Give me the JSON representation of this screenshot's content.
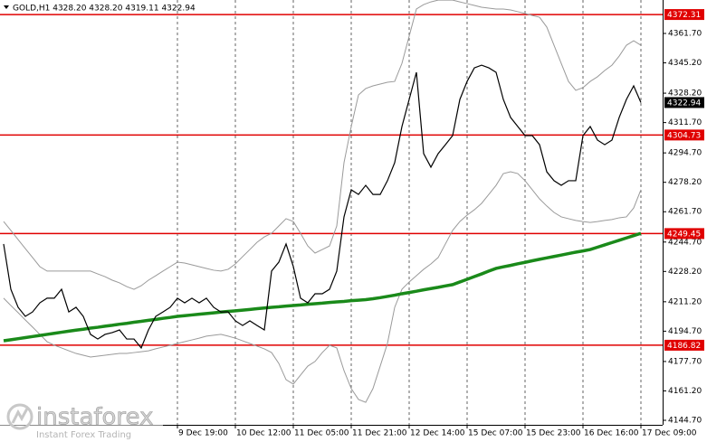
{
  "chart_data": {
    "type": "line",
    "title": "GOLD,H1  4328.20 4328.20 4319.11 4322.94",
    "categories": [
      null,
      null,
      null,
      null,
      null,
      null,
      null,
      null,
      null,
      null,
      null,
      null,
      null,
      null,
      null,
      null,
      null,
      null,
      null,
      null,
      null,
      null,
      null,
      null,
      "9 Dec 19:00",
      null,
      null,
      null,
      null,
      null,
      null,
      null,
      "10 Dec 12:00",
      null,
      null,
      null,
      null,
      null,
      null,
      null,
      "11 Dec 05:00",
      null,
      null,
      null,
      null,
      null,
      null,
      null,
      "11 Dec 21:00",
      null,
      null,
      null,
      null,
      null,
      null,
      null,
      "12 Dec 14:00",
      null,
      null,
      null,
      null,
      null,
      null,
      null,
      "15 Dec 07:00",
      null,
      null,
      null,
      null,
      null,
      null,
      null,
      "15 Dec 23:00",
      null,
      null,
      null,
      null,
      null,
      null,
      null,
      "16 Dec 16:00",
      null,
      null,
      null,
      null,
      null,
      null,
      null,
      "17 Dec 09:00"
    ],
    "series": [
      {
        "color": "#9a9a9a",
        "width": 1,
        "values": [
          4256.2,
          4251.2,
          4246.1,
          4241.0,
          4236.0,
          4230.9,
          4228.4,
          4228.4,
          4228.4,
          4228.4,
          4228.4,
          4228.4,
          4228.4,
          4226.8,
          4225.3,
          4223.3,
          4221.8,
          4219.7,
          4218.2,
          4220.2,
          4223.3,
          4225.8,
          4228.4,
          4230.9,
          4233.4,
          4232.9,
          4231.9,
          4230.9,
          4229.9,
          4228.9,
          4228.4,
          4229.4,
          4232.4,
          4236.5,
          4240.5,
          4244.6,
          4247.6,
          4249.6,
          4253.7,
          4257.8,
          4256.2,
          4249.6,
          4242.5,
          4238.5,
          4240.5,
          4242.5,
          4253.7,
          4289.2,
          4309.5,
          4327.2,
          4330.8,
          4332.3,
          4333.3,
          4334.3,
          4334.8,
          4344.9,
          4360.2,
          4375.4,
          4377.9,
          4379.4,
          4380.4,
          4380.4,
          4380.4,
          4379.4,
          4378.4,
          4377.4,
          4376.4,
          4375.9,
          4375.4,
          4375.4,
          4374.9,
          4373.9,
          4372.9,
          4371.8,
          4370.8,
          4365.3,
          4355.1,
          4344.9,
          4334.8,
          4329.8,
          4331.3,
          4334.8,
          4337.4,
          4340.9,
          4343.9,
          4349.0,
          4355.1,
          4357.6,
          4355.1
        ]
      },
      {
        "color": "#9a9a9a",
        "width": 1,
        "values": [
          4213.2,
          4209.1,
          4205.1,
          4201.0,
          4197.0,
          4192.9,
          4188.8,
          4186.8,
          4185.3,
          4183.7,
          4182.2,
          4181.2,
          4180.2,
          4180.7,
          4181.2,
          4181.7,
          4182.2,
          4182.2,
          4182.7,
          4183.2,
          4183.7,
          4184.8,
          4185.8,
          4186.8,
          4187.8,
          4188.8,
          4189.8,
          4190.8,
          4191.9,
          4192.4,
          4192.9,
          4191.9,
          4190.8,
          4189.3,
          4187.8,
          4186.3,
          4184.8,
          4182.7,
          4176.6,
          4167.5,
          4165.0,
          4170.1,
          4175.1,
          4177.7,
          4182.7,
          4186.8,
          4185.3,
          4172.6,
          4162.5,
          4156.4,
          4154.8,
          4162.5,
          4175.1,
          4187.8,
          4208.1,
          4218.2,
          4222.3,
          4225.8,
          4229.4,
          4232.4,
          4236.0,
          4243.6,
          4251.2,
          4256.2,
          4259.8,
          4262.8,
          4266.4,
          4271.4,
          4276.5,
          4283.1,
          4284.1,
          4283.1,
          4279.1,
          4274.0,
          4268.9,
          4264.9,
          4261.3,
          4258.8,
          4257.8,
          4256.8,
          4256.2,
          4255.7,
          4256.2,
          4256.8,
          4257.3,
          4258.3,
          4258.8,
          4263.8,
          4274.0
        ]
      },
      {
        "color": "#1a8a1a",
        "width": 3.5,
        "values": [
          4189.3,
          4189.9,
          4190.5,
          4191.1,
          4191.7,
          4192.3,
          4192.9,
          4193.5,
          4194.1,
          4194.7,
          4195.3,
          4195.8,
          4196.4,
          4196.9,
          4197.5,
          4198.0,
          4198.6,
          4199.1,
          4199.7,
          4200.2,
          4200.8,
          4201.3,
          4201.9,
          4202.4,
          4203.0,
          4203.4,
          4203.8,
          4204.2,
          4204.6,
          4205.0,
          4205.4,
          4205.8,
          4206.1,
          4206.5,
          4206.9,
          4207.3,
          4207.7,
          4208.1,
          4208.4,
          4208.8,
          4209.1,
          4209.4,
          4209.8,
          4210.1,
          4210.4,
          4210.8,
          4211.1,
          4211.4,
          4211.8,
          4212.1,
          4212.4,
          4212.9,
          4213.5,
          4214.2,
          4214.9,
          4215.7,
          4216.4,
          4217.1,
          4217.9,
          4218.6,
          4219.3,
          4220.1,
          4220.8,
          4222.3,
          4223.8,
          4225.3,
          4226.8,
          4228.4,
          4229.9,
          4230.8,
          4231.6,
          4232.5,
          4233.3,
          4234.2,
          4235.0,
          4235.8,
          4236.6,
          4237.4,
          4238.2,
          4239.0,
          4239.7,
          4240.5,
          4241.8,
          4243.1,
          4244.4,
          4245.7,
          4247.0,
          4248.3,
          4249.6
        ]
      },
      {
        "color": "#000000",
        "width": 1.2,
        "values": [
          4243.6,
          4218.2,
          4208.1,
          4203.0,
          4205.5,
          4210.6,
          4213.2,
          4213.2,
          4218.2,
          4205.5,
          4208.1,
          4203.0,
          4192.9,
          4190.3,
          4192.9,
          4193.9,
          4195.4,
          4190.3,
          4190.3,
          4185.3,
          4195.4,
          4203.0,
          4205.5,
          4208.1,
          4213.2,
          4210.6,
          4213.2,
          4210.6,
          4213.2,
          4208.1,
          4205.5,
          4205.5,
          4200.5,
          4197.9,
          4200.5,
          4197.9,
          4195.4,
          4228.4,
          4233.4,
          4243.6,
          4231.0,
          4213.2,
          4210.6,
          4215.7,
          4215.7,
          4218.2,
          4228.4,
          4258.8,
          4274.0,
          4271.4,
          4276.5,
          4271.4,
          4271.4,
          4279.1,
          4289.2,
          4309.5,
          4324.7,
          4339.9,
          4294.3,
          4286.7,
          4294.3,
          4299.3,
          4304.4,
          4324.7,
          4334.8,
          4342.4,
          4343.9,
          4342.4,
          4339.9,
          4324.7,
          4314.6,
          4309.5,
          4304.4,
          4304.4,
          4299.3,
          4284.1,
          4279.1,
          4276.5,
          4279.1,
          4279.1,
          4304.4,
          4309.5,
          4301.9,
          4299.3,
          4301.9,
          4314.6,
          4324.7,
          4332.3,
          4322.94
        ]
      }
    ],
    "ylim": [
      4142.17,
      4380.46
    ],
    "yticks": [
      {
        "value": 4361.7,
        "label": "4361.70"
      },
      {
        "value": 4345.2,
        "label": "4345.20"
      },
      {
        "value": 4328.2,
        "label": "4328.20"
      },
      {
        "value": 4311.7,
        "label": "4311.70"
      },
      {
        "value": 4294.7,
        "label": "4294.70"
      },
      {
        "value": 4278.2,
        "label": "4278.20"
      },
      {
        "value": 4261.7,
        "label": "4261.70"
      },
      {
        "value": 4244.7,
        "label": "4244.70"
      },
      {
        "value": 4228.2,
        "label": "4228.20"
      },
      {
        "value": 4211.2,
        "label": "4211.20"
      },
      {
        "value": 4194.7,
        "label": "4194.70"
      },
      {
        "value": 4177.7,
        "label": "4177.70"
      },
      {
        "value": 4161.2,
        "label": "4161.20"
      },
      {
        "value": 4144.7,
        "label": "4144.70"
      }
    ],
    "levels": [
      4372.31,
      4304.73,
      4249.45,
      4186.82
    ],
    "level_color": "#e00000",
    "last_price": 4322.94,
    "grid": true
  },
  "watermark": {
    "brand": "instaforex",
    "tagline": "Instant Forex Trading"
  }
}
